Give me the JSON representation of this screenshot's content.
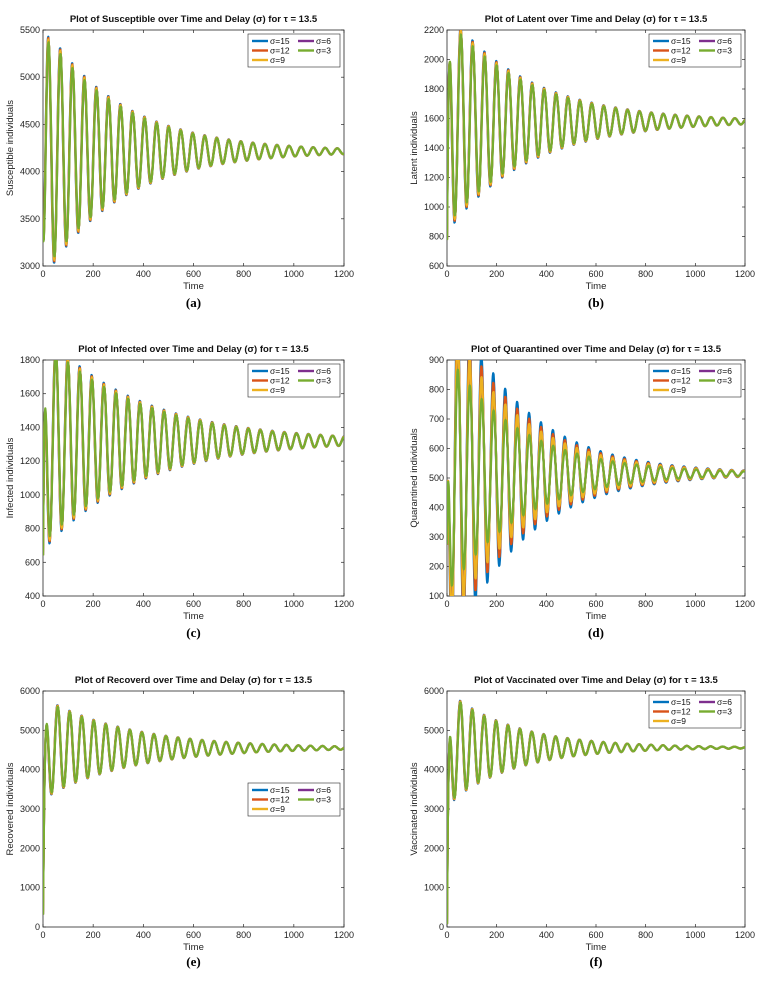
{
  "chart_data": [
    {
      "type": "line",
      "panel": "(a)",
      "title": "Plot of Susceptible over Time and Delay (σ) for τ = 13.5",
      "xlabel": "Time",
      "ylabel": "Susceptible individuals",
      "xlim": [
        0,
        1200
      ],
      "ylim": [
        3000,
        5500
      ],
      "xticks": [
        0,
        200,
        400,
        600,
        800,
        1000,
        1200
      ],
      "yticks": [
        3000,
        3500,
        4000,
        4500,
        5000,
        5500
      ],
      "legend_position": "top-right",
      "series": [
        {
          "name": "σ=15"
        },
        {
          "name": "σ=6"
        },
        {
          "name": "σ=12"
        },
        {
          "name": "σ=3"
        },
        {
          "name": "σ=9"
        }
      ],
      "dynamics": {
        "start": 3400,
        "equilibrium": 4215,
        "amplitude": 1200,
        "period": 48,
        "decay": 300,
        "phase": -1.2,
        "spread": 0.015
      }
    },
    {
      "type": "line",
      "panel": "(b)",
      "title": "Plot of Latent over Time and Delay (σ) for τ = 13.5",
      "xlabel": "Time",
      "ylabel": "Latent individuals",
      "xlim": [
        0,
        1200
      ],
      "ylim": [
        600,
        2200
      ],
      "xticks": [
        0,
        200,
        400,
        600,
        800,
        1000,
        1200
      ],
      "yticks": [
        600,
        800,
        1000,
        1200,
        1400,
        1600,
        1800,
        2000,
        2200
      ],
      "legend_position": "top-right",
      "series": [
        {
          "name": "σ=15"
        },
        {
          "name": "σ=6"
        },
        {
          "name": "σ=12"
        },
        {
          "name": "σ=3"
        },
        {
          "name": "σ=9"
        }
      ],
      "dynamics": {
        "start": 750,
        "equilibrium": 1580,
        "amplitude": 650,
        "period": 48,
        "decay": 320,
        "phase": 0.6,
        "spread": 0.02
      }
    },
    {
      "type": "line",
      "panel": "(c)",
      "title": "Plot of Infected over Time and Delay (σ) for τ = 13.5",
      "xlabel": "Time",
      "ylabel": "Infected individuals",
      "xlim": [
        0,
        1200
      ],
      "ylim": [
        400,
        1800
      ],
      "xticks": [
        0,
        200,
        400,
        600,
        800,
        1000,
        1200
      ],
      "yticks": [
        400,
        600,
        800,
        1000,
        1200,
        1400,
        1600,
        1800
      ],
      "legend_position": "top-right",
      "series": [
        {
          "name": "σ=15"
        },
        {
          "name": "σ=6"
        },
        {
          "name": "σ=12"
        },
        {
          "name": "σ=3"
        },
        {
          "name": "σ=9"
        }
      ],
      "dynamics": {
        "start": 600,
        "equilibrium": 1320,
        "amplitude": 560,
        "period": 48,
        "decay": 380,
        "phase": 1.2,
        "spread": 0.02
      }
    },
    {
      "type": "line",
      "panel": "(d)",
      "title": "Plot of Quarantined over Time and Delay (σ) for τ = 13.5",
      "xlabel": "Time",
      "ylabel": "Quarantined individuals",
      "xlim": [
        0,
        1200
      ],
      "ylim": [
        100,
        900
      ],
      "xticks": [
        0,
        200,
        400,
        600,
        800,
        1000,
        1200
      ],
      "yticks": [
        100,
        200,
        300,
        400,
        500,
        600,
        700,
        800,
        900
      ],
      "legend_position": "top-right",
      "series": [
        {
          "name": "σ=15"
        },
        {
          "name": "σ=6"
        },
        {
          "name": "σ=12"
        },
        {
          "name": "σ=3"
        },
        {
          "name": "σ=9"
        }
      ],
      "dynamics": {
        "start": 250,
        "equilibrium": 515,
        "amplitude": 380,
        "period": 48,
        "decay": 280,
        "phase": 2.2,
        "spread": 0.16
      }
    },
    {
      "type": "line",
      "panel": "(e)",
      "title": "Plot of Recoverd over Time and Delay (σ) for τ = 13.5",
      "xlabel": "Time",
      "ylabel": "Recovered individuals",
      "xlim": [
        0,
        1200
      ],
      "ylim": [
        0,
        6000
      ],
      "xticks": [
        0,
        200,
        400,
        600,
        800,
        1000,
        1200
      ],
      "yticks": [
        0,
        1000,
        2000,
        3000,
        4000,
        5000,
        6000
      ],
      "legend_position": "middle-right",
      "series": [
        {
          "name": "σ=15"
        },
        {
          "name": "σ=6"
        },
        {
          "name": "σ=12"
        },
        {
          "name": "σ=3"
        },
        {
          "name": "σ=9"
        }
      ],
      "dynamics": {
        "start": 300,
        "equilibrium": 4550,
        "amplitude": 1150,
        "period": 48,
        "decay": 340,
        "phase": 0.2,
        "spread": 0.01
      }
    },
    {
      "type": "line",
      "panel": "(f)",
      "title": "Plot of Vaccinated over Time and Delay (σ) for τ = 13.5",
      "xlabel": "Time",
      "ylabel": "Vaccinated individuals",
      "xlim": [
        0,
        1200
      ],
      "ylim": [
        0,
        6000
      ],
      "xticks": [
        0,
        200,
        400,
        600,
        800,
        1000,
        1200
      ],
      "yticks": [
        0,
        1000,
        2000,
        3000,
        4000,
        5000,
        6000
      ],
      "legend_position": "top-right",
      "series": [
        {
          "name": "σ=15"
        },
        {
          "name": "σ=6"
        },
        {
          "name": "σ=12"
        },
        {
          "name": "σ=3"
        },
        {
          "name": "σ=9"
        }
      ],
      "dynamics": {
        "start": 0,
        "equilibrium": 4560,
        "amplitude": 1300,
        "period": 48,
        "decay": 260,
        "phase": 0.8,
        "spread": 0.01
      }
    }
  ],
  "colors": {
    "σ=15": "#0072BD",
    "σ=12": "#D95319",
    "σ=9": "#EDB120",
    "σ=6": "#7E2F8E",
    "σ=3": "#77AC30"
  }
}
